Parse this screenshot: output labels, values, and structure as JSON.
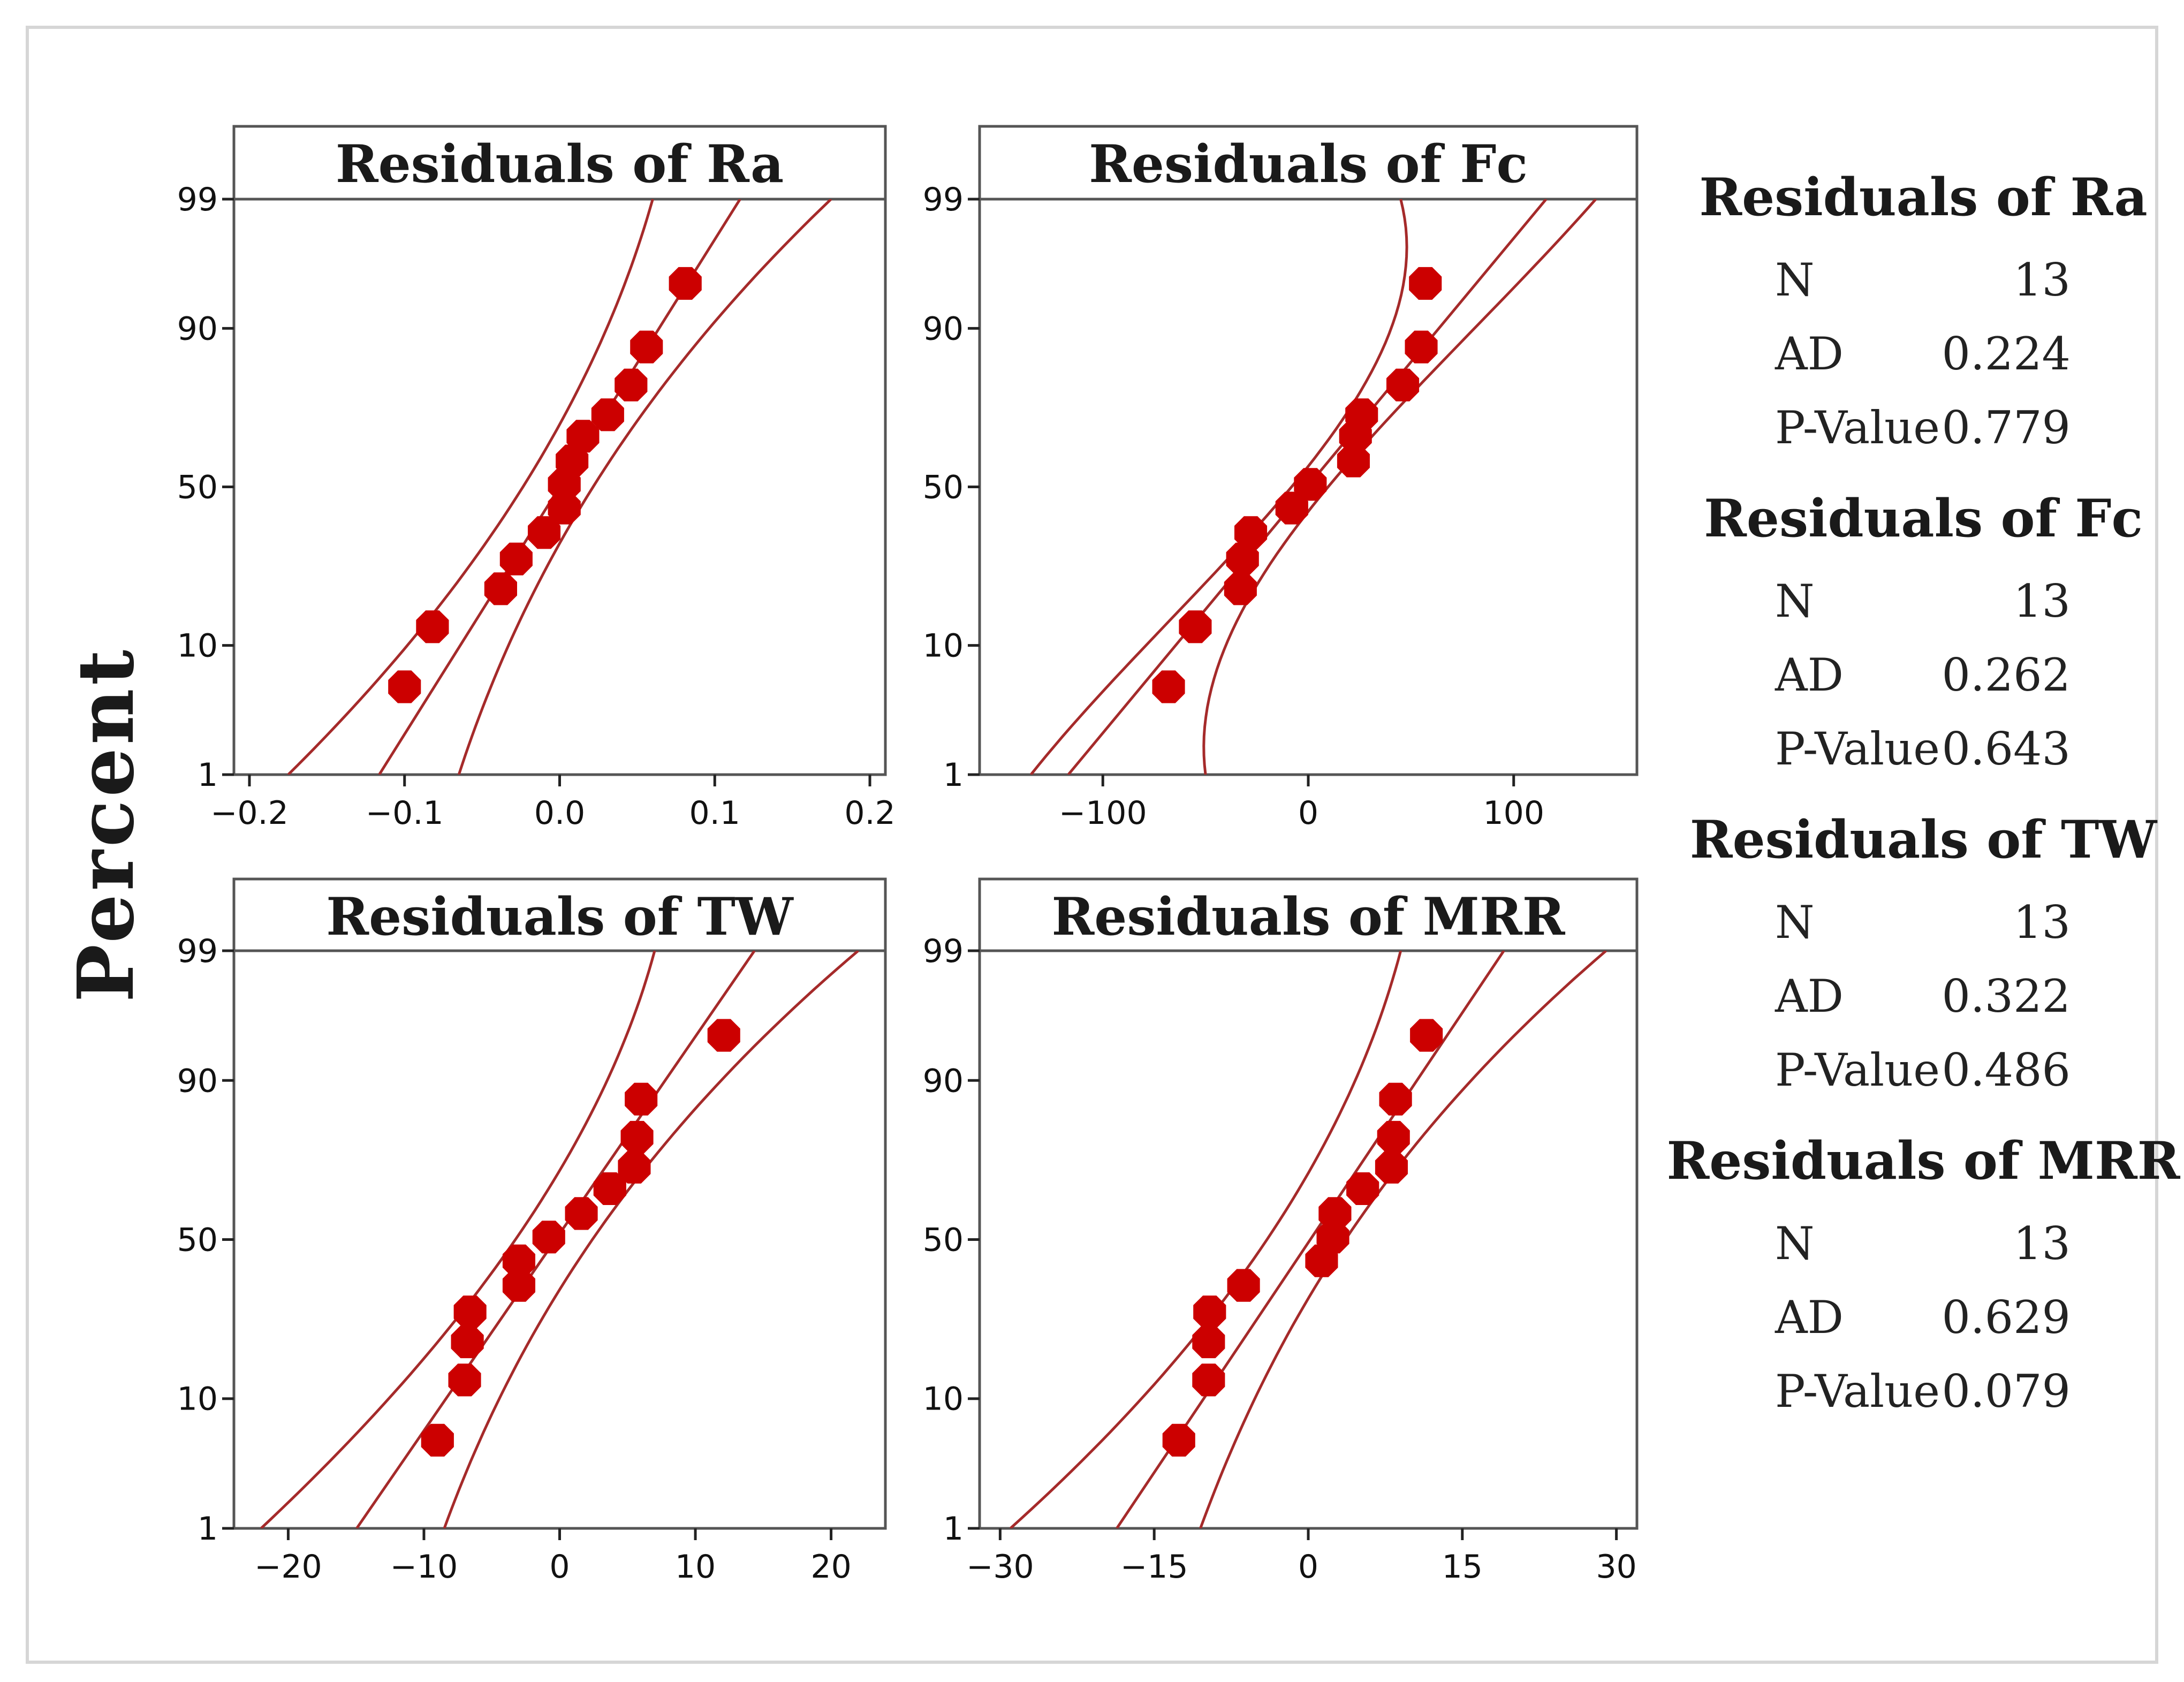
{
  "figure": {
    "ylabel": "Percent",
    "colors": {
      "line": "#a52a2a",
      "point": "#cc0000",
      "frame": "#555555"
    }
  },
  "chart_data": [
    {
      "type": "scatter",
      "title": "Residuals of Ra",
      "xlabel": "",
      "ylabel": "Percent",
      "xlim": [
        -0.21,
        0.21
      ],
      "x_ticks": [
        -0.2,
        -0.1,
        0.0,
        0.1,
        0.2
      ],
      "x_tick_labels": [
        "−0.2",
        "−0.1",
        "0.0",
        "0.1",
        "0.2"
      ],
      "y_ticks": [
        1,
        10,
        50,
        90,
        99
      ],
      "y_tick_labels": [
        "1",
        "10",
        "50",
        "90",
        "99"
      ],
      "x": [
        -0.1,
        -0.082,
        -0.038,
        -0.028,
        -0.01,
        0.003,
        0.003,
        0.008,
        0.015,
        0.031,
        0.046,
        0.056,
        0.081
      ],
      "percent": [
        5.3,
        12.9,
        20.5,
        28.0,
        35.6,
        43.2,
        50.8,
        58.3,
        65.9,
        72.0,
        79.5,
        87.1,
        95.0
      ],
      "fit": {
        "mean": 0.0,
        "sd": 0.05
      },
      "ci": {
        "x_at_1": [
          -0.175,
          -0.065
        ],
        "x_at_99": [
          0.06,
          0.175
        ]
      },
      "legend": {
        "title": "Residuals of Ra",
        "N": "13",
        "AD": "0.224",
        "P-Value": "0.779"
      }
    },
    {
      "type": "scatter",
      "title": "Residuals of Fc",
      "xlabel": "",
      "ylabel": "Percent",
      "xlim": [
        -160,
        160
      ],
      "x_ticks": [
        -100,
        0,
        100
      ],
      "x_tick_labels": [
        "−100",
        "0",
        "100"
      ],
      "y_ticks": [
        1,
        10,
        50,
        90,
        99
      ],
      "y_tick_labels": [
        "1",
        "10",
        "50",
        "90",
        "99"
      ],
      "x": [
        -68,
        -55,
        -33,
        -32,
        -28,
        -8,
        1,
        22,
        23,
        26,
        46,
        55,
        57
      ],
      "percent": [
        5.3,
        12.9,
        20.5,
        28.0,
        35.6,
        43.2,
        50.8,
        58.3,
        65.9,
        72.0,
        79.5,
        87.1,
        95.0
      ],
      "fit": {
        "mean": -0.5,
        "sd": 50.0
      },
      "ci": {
        "x_at_1": [
          -135,
          -50
        ],
        "x_at_99": [
          45,
          140
        ]
      },
      "legend": {
        "title": "Residuals of Fc",
        "N": "13",
        "AD": "0.262",
        "P-Value": "0.643"
      }
    },
    {
      "type": "scatter",
      "title": "Residuals of TW",
      "xlabel": "",
      "ylabel": "Percent",
      "xlim": [
        -24,
        24
      ],
      "x_ticks": [
        -20,
        -10,
        0,
        10,
        20
      ],
      "x_tick_labels": [
        "−20",
        "−10",
        "0",
        "10",
        "20"
      ],
      "y_ticks": [
        1,
        10,
        50,
        90,
        99
      ],
      "y_tick_labels": [
        "1",
        "10",
        "50",
        "90",
        "99"
      ],
      "x": [
        -9,
        -7,
        -6.8,
        -6.6,
        -3,
        -3,
        -0.8,
        1.6,
        3.7,
        5.5,
        5.7,
        6,
        12.1
      ],
      "percent": [
        5.3,
        12.9,
        20.5,
        28.0,
        35.6,
        43.2,
        50.8,
        58.3,
        65.9,
        72.0,
        79.5,
        87.1,
        95.0
      ],
      "fit": {
        "mean": -0.3,
        "sd": 6.3
      },
      "ci": {
        "x_at_1": [
          -22,
          -8.5
        ],
        "x_at_99": [
          7,
          22
        ]
      },
      "legend": {
        "title": "Residuals of TW",
        "N": "13",
        "AD": "0.322",
        "P-Value": "0.486"
      }
    },
    {
      "type": "scatter",
      "title": "Residuals of MRR",
      "xlabel": "",
      "ylabel": "Percent",
      "xlim": [
        -32,
        32
      ],
      "x_ticks": [
        -30,
        -15,
        0,
        15,
        30
      ],
      "x_tick_labels": [
        "−30",
        "−15",
        "0",
        "15",
        "30"
      ],
      "y_ticks": [
        1,
        10,
        50,
        90,
        99
      ],
      "y_tick_labels": [
        "1",
        "10",
        "50",
        "90",
        "99"
      ],
      "x": [
        -12.6,
        -9.7,
        -9.7,
        -9.6,
        -6.3,
        1.3,
        2.4,
        2.6,
        5.3,
        8.1,
        8.3,
        8.5,
        11.5
      ],
      "percent": [
        5.3,
        12.9,
        20.5,
        28.0,
        35.6,
        43.2,
        50.8,
        58.3,
        65.9,
        72.0,
        79.5,
        87.1,
        95.0
      ],
      "fit": {
        "mean": 0.2,
        "sd": 8.1
      },
      "ci": {
        "x_at_1": [
          -29,
          -10.5
        ],
        "x_at_99": [
          9,
          29
        ]
      },
      "legend": {
        "title": "Residuals of MRR",
        "N": "13",
        "AD": "0.629",
        "P-Value": "0.079"
      }
    }
  ]
}
